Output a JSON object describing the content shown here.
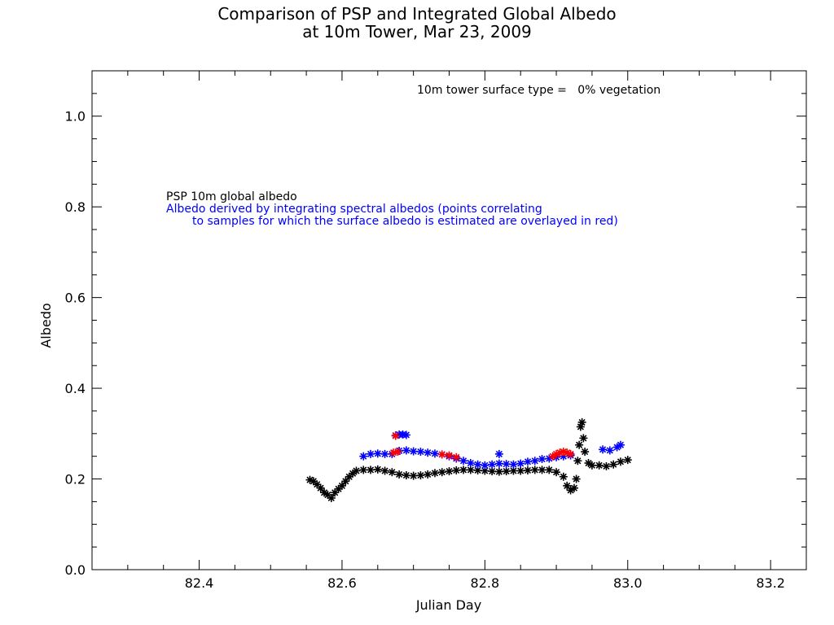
{
  "chart_data": {
    "type": "scatter",
    "title": [
      "Comparison of PSP and Integrated Global Albedo",
      "at 10m Tower,  Mar 23, 2009"
    ],
    "xlabel": "Julian Day",
    "ylabel": "Albedo",
    "xlim": [
      82.25,
      83.25
    ],
    "ylim": [
      0.0,
      1.1
    ],
    "x_ticks": [
      82.4,
      82.6,
      82.8,
      83.0,
      83.2
    ],
    "x_tick_labels": [
      "82.4",
      "82.6",
      "82.8",
      "83.0",
      "83.2"
    ],
    "y_ticks": [
      0.0,
      0.2,
      0.4,
      0.6,
      0.8,
      1.0
    ],
    "y_tick_labels": [
      "0.0",
      "0.2",
      "0.4",
      "0.6",
      "0.8",
      "1.0"
    ],
    "annotation": "10m tower surface type =   0% vegetation",
    "legend": {
      "psp_label": "PSP 10m global albedo",
      "integrated_label_line1": "Albedo derived by integrating spectral albedos (points correlating",
      "integrated_label_line2": "to samples for which the surface albedo is estimated are overlayed in red)"
    },
    "marker": "*",
    "colors": {
      "psp": "#000000",
      "integrated": "#0000ff",
      "estimated": "#ff0000"
    },
    "series": [
      {
        "name": "PSP 10m global albedo",
        "x": [
          82.555,
          82.56,
          82.565,
          82.57,
          82.575,
          82.58,
          82.585,
          82.59,
          82.595,
          82.6,
          82.605,
          82.61,
          82.615,
          82.62,
          82.63,
          82.64,
          82.65,
          82.66,
          82.67,
          82.68,
          82.69,
          82.7,
          82.71,
          82.72,
          82.73,
          82.74,
          82.75,
          82.76,
          82.77,
          82.78,
          82.79,
          82.8,
          82.81,
          82.82,
          82.83,
          82.84,
          82.85,
          82.86,
          82.87,
          82.88,
          82.89,
          82.9,
          82.91,
          82.915,
          82.92,
          82.925,
          82.928,
          82.93,
          82.932,
          82.934,
          82.936,
          82.938,
          82.94,
          82.945,
          82.95,
          82.96,
          82.97,
          82.98,
          82.99,
          83.0
        ],
        "y": [
          0.198,
          0.195,
          0.188,
          0.18,
          0.17,
          0.165,
          0.158,
          0.17,
          0.178,
          0.185,
          0.195,
          0.205,
          0.212,
          0.218,
          0.22,
          0.22,
          0.221,
          0.218,
          0.215,
          0.21,
          0.208,
          0.207,
          0.208,
          0.21,
          0.213,
          0.215,
          0.217,
          0.219,
          0.22,
          0.22,
          0.219,
          0.218,
          0.217,
          0.216,
          0.217,
          0.218,
          0.218,
          0.219,
          0.22,
          0.22,
          0.22,
          0.215,
          0.205,
          0.185,
          0.175,
          0.18,
          0.2,
          0.24,
          0.275,
          0.315,
          0.325,
          0.29,
          0.26,
          0.235,
          0.23,
          0.23,
          0.228,
          0.232,
          0.238,
          0.242
        ]
      },
      {
        "name": "Albedo derived by integrating spectral albedos",
        "x": [
          82.63,
          82.64,
          82.65,
          82.66,
          82.67,
          82.68,
          82.69,
          82.7,
          82.71,
          82.72,
          82.73,
          82.74,
          82.75,
          82.76,
          82.77,
          82.78,
          82.79,
          82.8,
          82.81,
          82.82,
          82.83,
          82.84,
          82.85,
          82.86,
          82.87,
          82.88,
          82.89,
          82.9,
          82.91,
          82.92,
          82.675,
          82.68,
          82.685,
          82.69,
          82.82,
          82.965,
          82.975,
          82.985,
          82.99
        ],
        "y": [
          0.25,
          0.255,
          0.256,
          0.255,
          0.255,
          0.262,
          0.263,
          0.261,
          0.26,
          0.258,
          0.256,
          0.254,
          0.25,
          0.245,
          0.24,
          0.235,
          0.232,
          0.23,
          0.232,
          0.234,
          0.233,
          0.232,
          0.234,
          0.238,
          0.24,
          0.244,
          0.245,
          0.248,
          0.25,
          0.252,
          0.296,
          0.298,
          0.298,
          0.297,
          0.255,
          0.265,
          0.263,
          0.27,
          0.275
        ]
      },
      {
        "name": "estimated",
        "x": [
          82.672,
          82.675,
          82.678,
          82.74,
          82.75,
          82.76,
          82.895,
          82.9,
          82.905,
          82.91,
          82.915,
          82.92
        ],
        "y": [
          0.258,
          0.295,
          0.26,
          0.254,
          0.252,
          0.248,
          0.25,
          0.255,
          0.258,
          0.26,
          0.258,
          0.255
        ]
      }
    ]
  }
}
